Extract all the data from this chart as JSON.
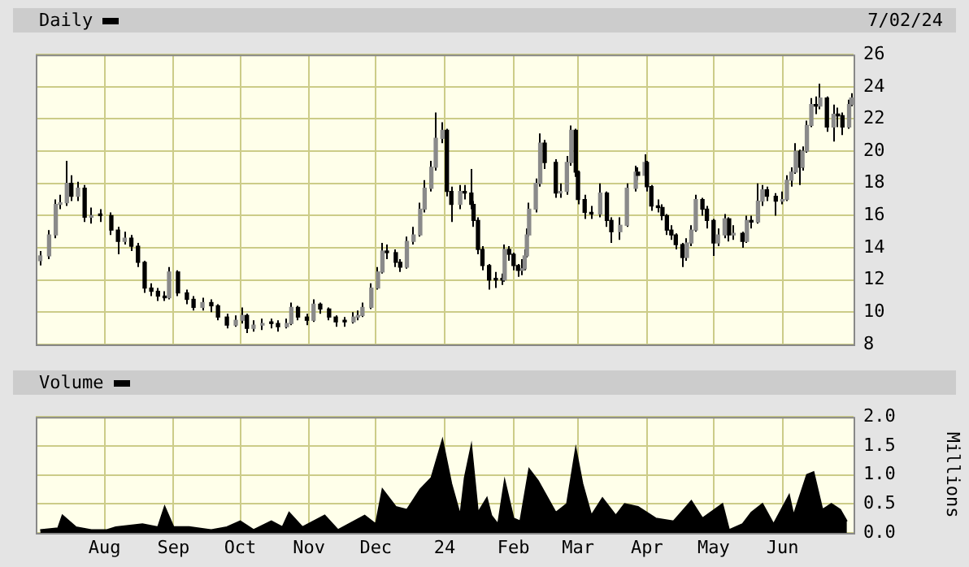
{
  "chart_data": [
    {
      "type": "candlestick",
      "title": "Daily",
      "annotations": [
        "7/02/24"
      ],
      "color": "#000000",
      "colors": [
        "#8a8a8a",
        "#8a8a8a",
        "#8a8a8a",
        "#8a8a8a",
        "#8a8a8a",
        "#000000",
        "#8a8a8a",
        "#000000",
        "#8a8a8a",
        "#000000",
        "#000000",
        "#000000",
        "#8a8a8a",
        "#000000",
        "#000000",
        "#000000",
        "#000000",
        "#000000",
        "#000000",
        "#8a8a8a",
        "#000000",
        "#000000",
        "#000000",
        "#8a8a8a",
        "#000000",
        "#000000",
        "#000000",
        "#8a8a8a",
        "#8a8a8a",
        "#000000",
        "#8a8a8a",
        "#8a8a8a",
        "#000000",
        "#000000",
        "#8a8a8a",
        "#8a8a8a",
        "#000000",
        "#000000",
        "#8a8a8a",
        "#000000",
        "#000000",
        "#000000",
        "#000000",
        "#8a8a8a",
        "#8a8a8a",
        "#8a8a8a",
        "#8a8a8a",
        "#8a8a8a",
        "#8a8a8a",
        "#000000",
        "#000000",
        "#000000",
        "#8a8a8a",
        "#8a8a8a",
        "#8a8a8a",
        "#8a8a8a",
        "#8a8a8a",
        "#8a8a8a",
        "#8a8a8a",
        "#000000",
        "#000000",
        "#8a8a8a",
        "#000000",
        "#000000",
        "#000000",
        "#000000",
        "#000000",
        "#000000",
        "#000000",
        "#000000",
        "#8a8a8a",
        "#000000",
        "#000000",
        "#000000",
        "#8a8a8a",
        "#8a8a8a",
        "#8a8a8a",
        "#8a8a8a",
        "#8a8a8a",
        "#8a8a8a",
        "#000000",
        "#000000",
        "#8a8a8a",
        "#8a8a8a",
        "#8a8a8a",
        "#000000",
        "#000000",
        "#000000",
        "#000000",
        "#8a8a8a",
        "#000000",
        "#000000",
        "#8a8a8a",
        "#8a8a8a",
        "#8a8a8a",
        "#000000",
        "#8a8a8a",
        "#000000",
        "#000000",
        "#000000",
        "#000000",
        "#000000",
        "#000000",
        "#000000",
        "#000000",
        "#8a8a8a",
        "#8a8a8a",
        "#8a8a8a",
        "#000000",
        "#000000",
        "#000000",
        "#8a8a8a",
        "#8a8a8a",
        "#000000",
        "#8a8a8a",
        "#000000",
        "#8a8a8a",
        "#000000",
        "#8a8a8a",
        "#8a8a8a",
        "#000000",
        "#000000",
        "#8a8a8a",
        "#8a8a8a",
        "#8a8a8a",
        "#8a8a8a",
        "#000000",
        "#8a8a8a",
        "#8a8a8a",
        "#8a8a8a",
        "#000000",
        "#8a8a8a",
        "#000000",
        "#8a8a8a",
        "#000000",
        "#000000",
        "#8a8a8a",
        "#8a8a8a"
      ],
      "x": [
        "2023-07-03",
        "2023-07-07",
        "2023-07-10",
        "2023-07-12",
        "2023-07-15",
        "2023-07-17",
        "2023-07-20",
        "2023-07-23",
        "2023-07-26",
        "2023-07-30",
        "2023-08-04",
        "2023-08-07",
        "2023-08-10",
        "2023-08-13",
        "2023-08-16",
        "2023-08-19",
        "2023-08-22",
        "2023-08-25",
        "2023-08-28",
        "2023-08-30",
        "2023-09-03",
        "2023-09-07",
        "2023-09-10",
        "2023-09-14",
        "2023-09-18",
        "2023-09-21",
        "2023-09-25",
        "2023-09-29",
        "2023-10-02",
        "2023-10-04",
        "2023-10-07",
        "2023-10-11",
        "2023-10-15",
        "2023-10-18",
        "2023-10-22",
        "2023-10-24",
        "2023-10-27",
        "2023-10-31",
        "2023-11-03",
        "2023-11-06",
        "2023-11-10",
        "2023-11-13",
        "2023-11-17",
        "2023-11-21",
        "2023-11-23",
        "2023-11-25",
        "2023-11-29",
        "2023-12-02",
        "2023-12-04",
        "2023-12-06",
        "2023-12-10",
        "2023-12-12",
        "2023-12-15",
        "2023-12-18",
        "2023-12-21",
        "2023-12-23",
        "2023-12-26",
        "2023-12-28",
        "2023-12-31",
        "2024-01-02",
        "2024-01-04",
        "2024-01-08",
        "2024-01-10",
        "2024-01-13",
        "2024-01-14",
        "2024-01-16",
        "2024-01-18",
        "2024-01-21",
        "2024-01-24",
        "2024-01-27",
        "2024-01-28",
        "2024-01-30",
        "2024-02-01",
        "2024-02-03",
        "2024-02-05",
        "2024-02-06",
        "2024-02-07",
        "2024-02-08",
        "2024-02-11",
        "2024-02-13",
        "2024-02-15",
        "2024-02-20",
        "2024-02-22",
        "2024-02-25",
        "2024-02-27",
        "2024-02-29",
        "2024-03-01",
        "2024-03-04",
        "2024-03-07",
        "2024-03-11",
        "2024-03-14",
        "2024-03-16",
        "2024-03-20",
        "2024-03-23",
        "2024-03-27",
        "2024-03-28",
        "2024-03-31",
        "2024-04-01",
        "2024-04-03",
        "2024-04-06",
        "2024-04-08",
        "2024-04-10",
        "2024-04-12",
        "2024-04-14",
        "2024-04-17",
        "2024-04-19",
        "2024-04-21",
        "2024-04-23",
        "2024-04-26",
        "2024-04-28",
        "2024-05-01",
        "2024-05-03",
        "2024-05-06",
        "2024-05-08",
        "2024-05-10",
        "2024-05-14",
        "2024-05-16",
        "2024-05-18",
        "2024-05-21",
        "2024-05-23",
        "2024-05-25",
        "2024-05-29",
        "2024-06-01",
        "2024-06-03",
        "2024-06-05",
        "2024-06-07",
        "2024-06-09",
        "2024-06-10",
        "2024-06-12",
        "2024-06-14",
        "2024-06-16",
        "2024-06-18",
        "2024-06-21",
        "2024-06-24",
        "2024-06-26",
        "2024-06-28",
        "2024-07-01",
        "2024-07-02"
      ],
      "ohlc": [
        [
          13.2,
          13.8,
          12.9,
          13.5
        ],
        [
          13.5,
          15.1,
          13.3,
          14.8
        ],
        [
          14.8,
          17.0,
          14.6,
          16.7
        ],
        [
          16.7,
          17.3,
          16.4,
          16.8
        ],
        [
          16.8,
          19.4,
          16.6,
          18.0
        ],
        [
          18.0,
          18.5,
          16.9,
          17.2
        ],
        [
          17.2,
          18.1,
          16.9,
          17.7
        ],
        [
          17.7,
          17.9,
          15.6,
          15.9
        ],
        [
          15.9,
          16.5,
          15.5,
          16.0
        ],
        [
          16.0,
          16.4,
          15.6,
          16.0
        ],
        [
          16.0,
          16.2,
          14.8,
          15.1
        ],
        [
          15.1,
          15.3,
          13.6,
          14.4
        ],
        [
          14.4,
          15.0,
          14.2,
          14.6
        ],
        [
          14.6,
          14.8,
          13.8,
          14.1
        ],
        [
          14.1,
          14.3,
          12.8,
          13.1
        ],
        [
          13.1,
          13.2,
          11.2,
          11.5
        ],
        [
          11.5,
          11.8,
          11.0,
          11.3
        ],
        [
          11.3,
          11.5,
          10.7,
          11.0
        ],
        [
          11.0,
          11.3,
          10.7,
          10.9
        ],
        [
          10.9,
          12.8,
          10.8,
          12.5
        ],
        [
          12.5,
          12.6,
          11.0,
          11.2
        ],
        [
          11.2,
          11.4,
          10.5,
          10.8
        ],
        [
          10.8,
          11.0,
          10.1,
          10.3
        ],
        [
          10.3,
          10.9,
          10.1,
          10.6
        ],
        [
          10.6,
          10.8,
          10.0,
          10.4
        ],
        [
          10.4,
          10.5,
          9.5,
          9.7
        ],
        [
          9.7,
          9.9,
          9.0,
          9.2
        ],
        [
          9.2,
          9.8,
          9.1,
          9.5
        ],
        [
          9.5,
          10.3,
          9.3,
          9.8
        ],
        [
          9.8,
          9.9,
          8.7,
          9.0
        ],
        [
          9.0,
          9.5,
          8.8,
          9.2
        ],
        [
          9.2,
          9.6,
          8.9,
          9.3
        ],
        [
          9.3,
          9.6,
          9.0,
          9.3
        ],
        [
          9.3,
          9.5,
          8.8,
          9.1
        ],
        [
          9.1,
          9.6,
          9.0,
          9.3
        ],
        [
          9.3,
          10.6,
          9.2,
          10.3
        ],
        [
          10.3,
          10.4,
          9.5,
          9.7
        ],
        [
          9.7,
          9.9,
          9.2,
          9.5
        ],
        [
          9.5,
          10.8,
          9.4,
          10.5
        ],
        [
          10.5,
          10.6,
          9.9,
          10.2
        ],
        [
          10.2,
          10.3,
          9.5,
          9.7
        ],
        [
          9.7,
          9.8,
          9.1,
          9.4
        ],
        [
          9.4,
          9.7,
          9.1,
          9.4
        ],
        [
          9.4,
          10.0,
          9.3,
          9.7
        ],
        [
          9.7,
          10.1,
          9.5,
          9.8
        ],
        [
          9.8,
          10.6,
          9.7,
          10.3
        ],
        [
          10.3,
          11.8,
          10.2,
          11.5
        ],
        [
          11.5,
          12.8,
          11.4,
          12.5
        ],
        [
          12.5,
          14.3,
          12.4,
          13.8
        ],
        [
          13.8,
          14.2,
          13.3,
          13.7
        ],
        [
          13.7,
          13.9,
          12.8,
          13.1
        ],
        [
          13.1,
          13.3,
          12.5,
          12.8
        ],
        [
          12.8,
          14.7,
          12.7,
          14.4
        ],
        [
          14.4,
          15.3,
          14.2,
          14.8
        ],
        [
          14.8,
          16.8,
          14.7,
          16.4
        ],
        [
          16.4,
          18.2,
          16.2,
          17.7
        ],
        [
          17.7,
          19.4,
          17.5,
          19.0
        ],
        [
          19.0,
          22.4,
          18.8,
          20.8
        ],
        [
          20.8,
          21.8,
          20.5,
          21.3
        ],
        [
          21.3,
          21.4,
          17.2,
          17.5
        ],
        [
          17.5,
          17.8,
          15.6,
          16.7
        ],
        [
          16.7,
          17.9,
          16.4,
          17.5
        ],
        [
          17.5,
          17.9,
          17.0,
          17.4
        ],
        [
          17.4,
          18.9,
          16.4,
          16.7
        ],
        [
          16.7,
          16.9,
          15.3,
          15.7
        ],
        [
          15.7,
          15.9,
          13.6,
          13.9
        ],
        [
          13.9,
          14.1,
          12.6,
          12.9
        ],
        [
          12.9,
          13.0,
          11.4,
          12.0
        ],
        [
          12.0,
          12.5,
          11.5,
          12.0
        ],
        [
          12.0,
          12.4,
          11.7,
          12.0
        ],
        [
          12.0,
          14.2,
          11.9,
          13.9
        ],
        [
          13.9,
          14.1,
          13.2,
          13.6
        ],
        [
          13.6,
          13.7,
          12.6,
          12.9
        ],
        [
          12.9,
          13.0,
          12.2,
          12.6
        ],
        [
          12.6,
          13.3,
          12.3,
          12.7
        ],
        [
          12.7,
          13.9,
          12.6,
          13.5
        ],
        [
          13.5,
          15.2,
          13.4,
          14.8
        ],
        [
          14.8,
          16.8,
          14.7,
          16.4
        ],
        [
          16.4,
          18.3,
          16.2,
          18.0
        ],
        [
          18.0,
          21.1,
          17.8,
          20.5
        ],
        [
          20.5,
          20.7,
          18.9,
          19.3
        ],
        [
          19.3,
          19.5,
          17.1,
          17.4
        ],
        [
          17.4,
          18.0,
          17.1,
          17.5
        ],
        [
          17.5,
          19.7,
          17.3,
          19.3
        ],
        [
          19.3,
          21.6,
          19.1,
          21.3
        ],
        [
          21.3,
          21.4,
          18.4,
          18.7
        ],
        [
          18.7,
          18.8,
          16.7,
          17.0
        ],
        [
          17.0,
          17.3,
          15.8,
          16.2
        ],
        [
          16.2,
          16.6,
          15.8,
          16.1
        ],
        [
          16.1,
          18.0,
          15.9,
          17.4
        ],
        [
          17.4,
          17.5,
          15.3,
          15.7
        ],
        [
          15.7,
          15.9,
          14.3,
          15.0
        ],
        [
          15.0,
          15.9,
          14.5,
          15.4
        ],
        [
          15.4,
          18.0,
          15.3,
          17.7
        ],
        [
          17.7,
          19.1,
          17.5,
          18.7
        ],
        [
          18.7,
          19.0,
          18.2,
          18.5
        ],
        [
          18.5,
          19.8,
          18.3,
          19.3
        ],
        [
          19.3,
          19.4,
          17.5,
          17.8
        ],
        [
          17.8,
          17.9,
          16.3,
          16.6
        ],
        [
          16.6,
          17.0,
          16.2,
          16.5
        ],
        [
          16.5,
          16.7,
          15.7,
          16.0
        ],
        [
          16.0,
          16.1,
          14.8,
          15.1
        ],
        [
          15.1,
          15.4,
          14.5,
          14.8
        ],
        [
          14.8,
          14.9,
          13.9,
          14.2
        ],
        [
          14.2,
          14.3,
          12.8,
          13.4
        ],
        [
          13.4,
          14.6,
          13.2,
          14.3
        ],
        [
          14.3,
          15.4,
          14.1,
          15.1
        ],
        [
          15.1,
          17.3,
          15.0,
          17.0
        ],
        [
          17.0,
          17.1,
          16.0,
          16.4
        ],
        [
          16.4,
          16.6,
          15.2,
          15.7
        ],
        [
          15.7,
          15.8,
          13.5,
          14.3
        ],
        [
          14.3,
          15.2,
          14.1,
          14.8
        ],
        [
          14.8,
          16.1,
          14.6,
          15.8
        ],
        [
          15.8,
          15.9,
          14.4,
          14.8
        ],
        [
          14.8,
          15.4,
          14.5,
          14.9
        ],
        [
          14.9,
          15.0,
          14.0,
          14.4
        ],
        [
          14.4,
          16.0,
          14.3,
          15.7
        ],
        [
          15.7,
          16.0,
          15.2,
          15.6
        ],
        [
          15.6,
          18.0,
          15.5,
          16.9
        ],
        [
          16.9,
          17.9,
          16.6,
          17.6
        ],
        [
          17.6,
          17.8,
          16.9,
          17.2
        ],
        [
          17.2,
          17.4,
          16.0,
          16.9
        ],
        [
          16.9,
          17.5,
          16.7,
          17.0
        ],
        [
          17.0,
          18.5,
          16.9,
          18.2
        ],
        [
          18.2,
          19.0,
          17.8,
          18.7
        ],
        [
          18.7,
          20.5,
          18.6,
          20.0
        ],
        [
          20.0,
          20.1,
          17.9,
          19.0
        ],
        [
          19.0,
          20.3,
          18.8,
          20.0
        ],
        [
          20.0,
          21.9,
          19.9,
          21.6
        ],
        [
          21.6,
          23.3,
          21.5,
          22.9
        ],
        [
          22.9,
          23.4,
          22.3,
          22.8
        ],
        [
          22.8,
          24.2,
          22.6,
          23.3
        ],
        [
          23.3,
          23.4,
          21.2,
          21.5
        ],
        [
          21.5,
          22.9,
          20.6,
          22.3
        ],
        [
          22.3,
          22.7,
          21.5,
          22.2
        ],
        [
          22.2,
          22.4,
          21.0,
          21.5
        ],
        [
          21.5,
          23.2,
          21.4,
          22.9
        ],
        [
          22.9,
          23.6,
          22.8,
          23.3
        ]
      ],
      "xlim": [
        "2023-07-01",
        "2024-07-03"
      ],
      "xticks": [
        {
          "value": "2023-08-01",
          "label": null
        },
        {
          "value": "2023-09-01",
          "label": null
        },
        {
          "value": "2023-10-01",
          "label": null
        },
        {
          "value": "2023-11-01",
          "label": null
        },
        {
          "value": "2023-12-01",
          "label": null
        },
        {
          "value": "2024-01-01",
          "label": null
        },
        {
          "value": "2024-02-01",
          "label": null
        },
        {
          "value": "2024-03-01",
          "label": null
        },
        {
          "value": "2024-04-01",
          "label": null
        },
        {
          "value": "2024-05-01",
          "label": null
        },
        {
          "value": "2024-06-01",
          "label": null
        }
      ],
      "ylim": [
        8,
        26
      ],
      "yticks": [
        8,
        10,
        12,
        14,
        16,
        18,
        20,
        22,
        24,
        26
      ],
      "grid": true,
      "tick_labels": "y"
    },
    {
      "type": "area",
      "title": "Volume",
      "ylabel": "Millions",
      "color": "#000000",
      "x": [
        "2023-07-03",
        "2023-07-11",
        "2023-07-13",
        "2023-07-19",
        "2023-07-26",
        "2023-08-02",
        "2023-08-06",
        "2023-08-18",
        "2023-08-25",
        "2023-08-28",
        "2023-09-01",
        "2023-09-08",
        "2023-09-18",
        "2023-09-25",
        "2023-10-01",
        "2023-10-07",
        "2023-10-15",
        "2023-10-20",
        "2023-10-23",
        "2023-10-29",
        "2023-11-08",
        "2023-11-14",
        "2023-11-26",
        "2023-12-01",
        "2023-12-04",
        "2023-12-10",
        "2023-12-15",
        "2023-12-21",
        "2023-12-26",
        "2023-12-31",
        "2024-01-04",
        "2024-01-08",
        "2024-01-10",
        "2024-01-13",
        "2024-01-16",
        "2024-01-20",
        "2024-01-22",
        "2024-01-25",
        "2024-01-28",
        "2024-02-01",
        "2024-02-04",
        "2024-02-08",
        "2024-02-12",
        "2024-02-20",
        "2024-02-25",
        "2024-02-29",
        "2024-03-03",
        "2024-03-07",
        "2024-03-12",
        "2024-03-18",
        "2024-03-22",
        "2024-03-28",
        "2024-04-05",
        "2024-04-13",
        "2024-04-21",
        "2024-04-26",
        "2024-05-05",
        "2024-05-08",
        "2024-05-14",
        "2024-05-18",
        "2024-05-23",
        "2024-05-28",
        "2024-06-04",
        "2024-06-06",
        "2024-06-12",
        "2024-06-15",
        "2024-06-19",
        "2024-06-23",
        "2024-06-27",
        "2024-06-30"
      ],
      "values": [
        0.05,
        0.08,
        0.3,
        0.1,
        0.05,
        0.05,
        0.1,
        0.15,
        0.1,
        0.45,
        0.1,
        0.1,
        0.05,
        0.1,
        0.2,
        0.05,
        0.2,
        0.1,
        0.35,
        0.1,
        0.3,
        0.05,
        0.3,
        0.15,
        0.75,
        0.45,
        0.4,
        0.75,
        0.95,
        1.6,
        0.85,
        0.3,
        0.95,
        1.5,
        0.35,
        0.6,
        0.3,
        0.15,
        0.9,
        0.25,
        0.2,
        1.1,
        0.9,
        0.35,
        0.5,
        1.45,
        0.85,
        0.3,
        0.6,
        0.3,
        0.5,
        0.45,
        0.25,
        0.2,
        0.55,
        0.25,
        0.5,
        0.05,
        0.15,
        0.35,
        0.5,
        0.15,
        0.65,
        0.3,
        1.0,
        1.05,
        0.4,
        0.5,
        0.4,
        0.2
      ],
      "xlim": [
        "2023-07-01",
        "2024-07-03"
      ],
      "xticks": [
        {
          "value": "2023-08-01",
          "label": "Aug"
        },
        {
          "value": "2023-09-01",
          "label": "Sep"
        },
        {
          "value": "2023-10-01",
          "label": "Oct"
        },
        {
          "value": "2023-11-01",
          "label": "Nov"
        },
        {
          "value": "2023-12-01",
          "label": "Dec"
        },
        {
          "value": "2024-01-01",
          "label": "24"
        },
        {
          "value": "2024-02-01",
          "label": "Feb"
        },
        {
          "value": "2024-03-01",
          "label": "Mar"
        },
        {
          "value": "2024-04-01",
          "label": "Apr"
        },
        {
          "value": "2024-05-01",
          "label": "May"
        },
        {
          "value": "2024-06-01",
          "label": "Jun"
        }
      ],
      "ylim": [
        0,
        2
      ],
      "yticks": [
        {
          "value": 0,
          "label": "0.0"
        },
        {
          "value": 0.5,
          "label": "0.5"
        },
        {
          "value": 1,
          "label": "1.0"
        },
        {
          "value": 1.5,
          "label": "1.5"
        },
        {
          "value": 2,
          "label": "2.0"
        }
      ],
      "grid": true
    }
  ]
}
